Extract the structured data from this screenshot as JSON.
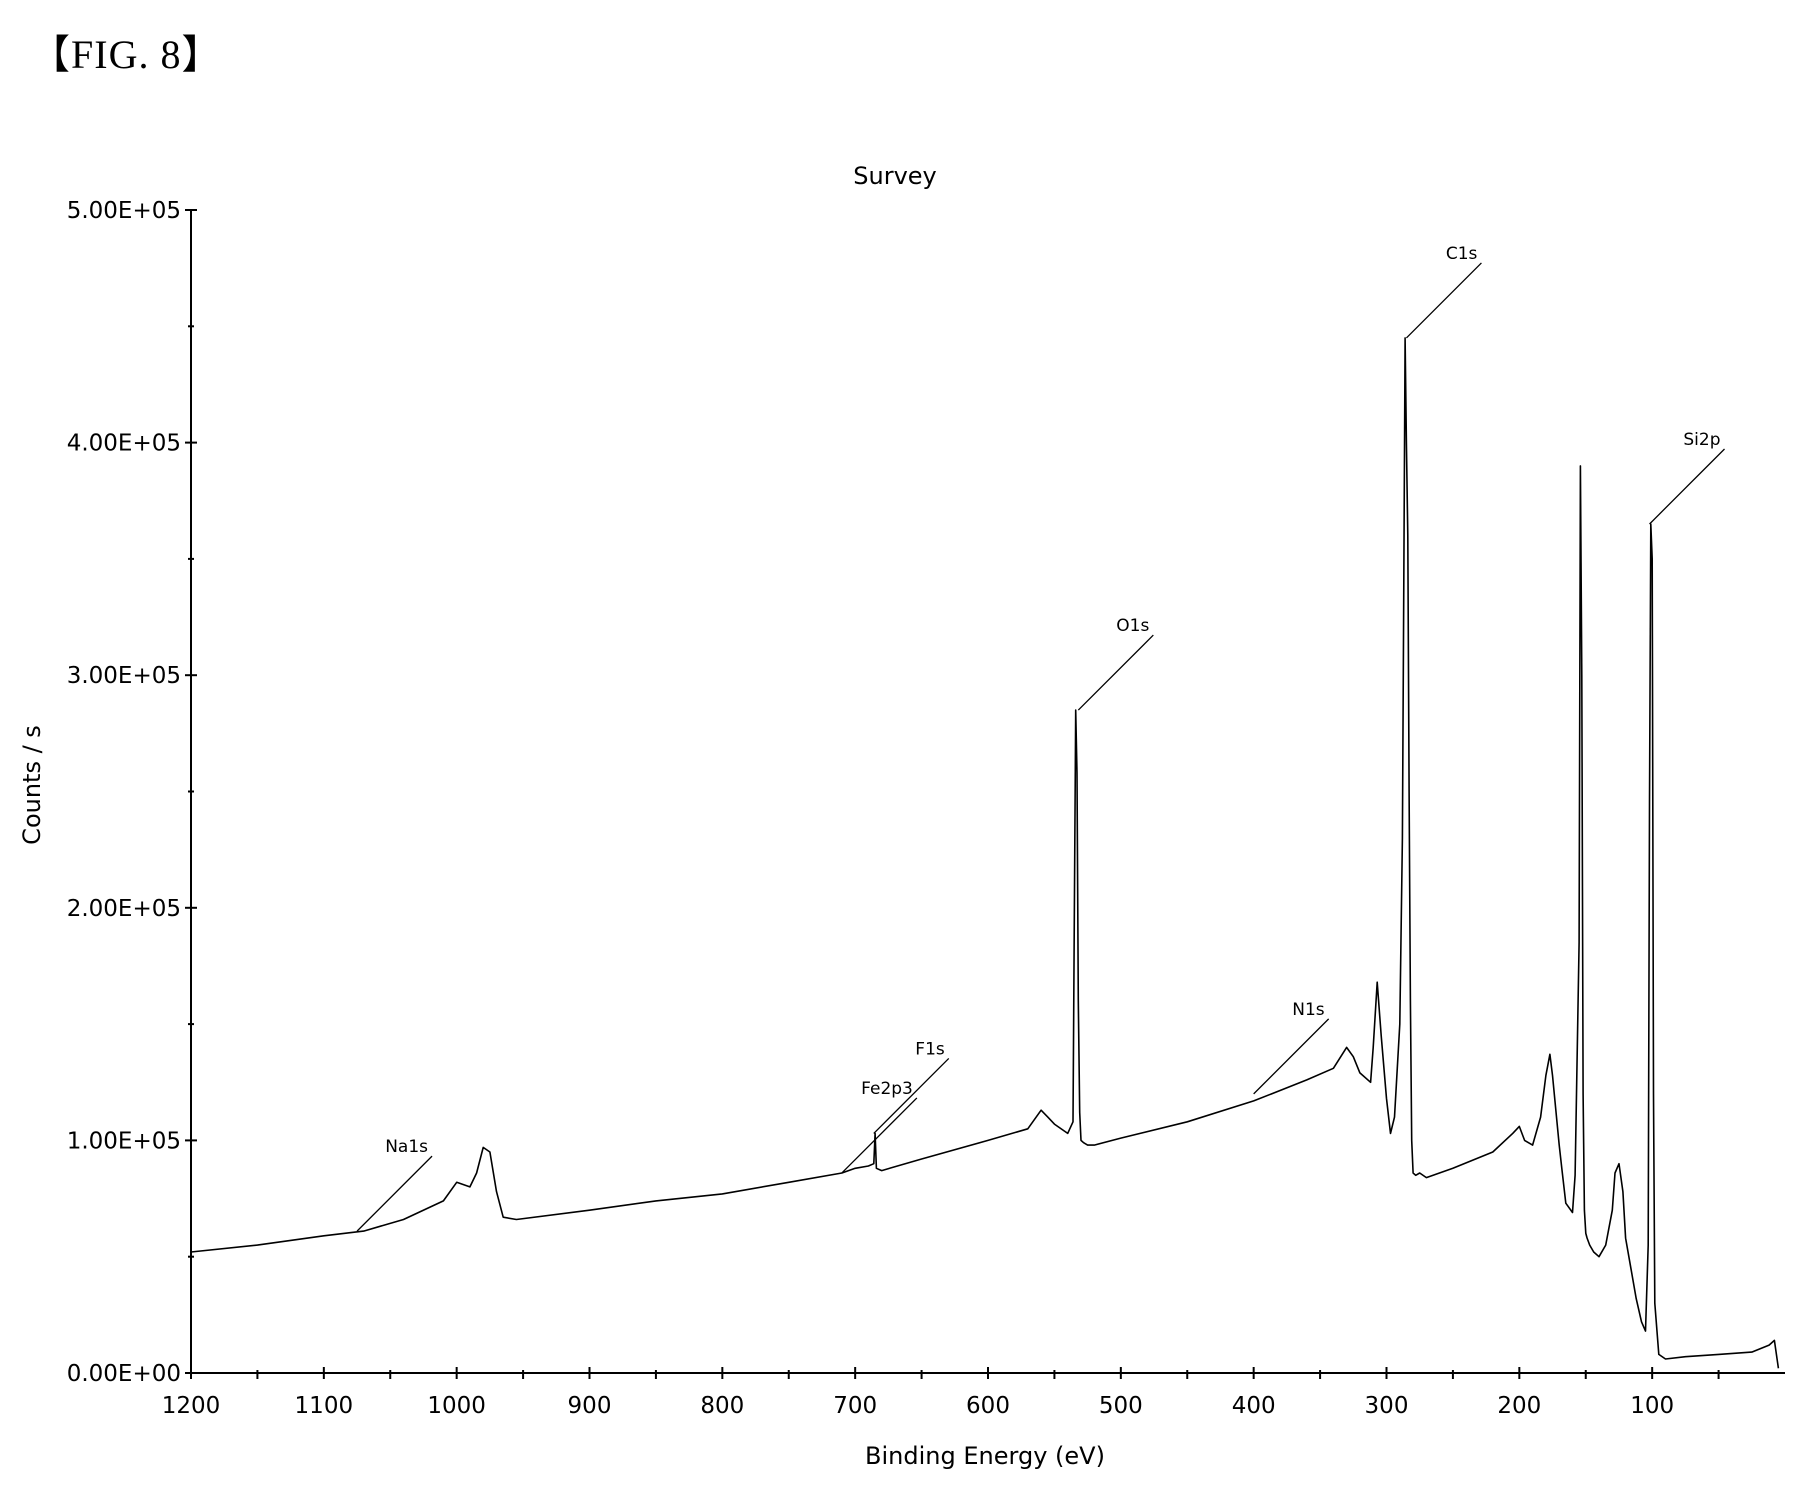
{
  "figure_label": "【FIG. 8】",
  "chart_data": {
    "type": "line",
    "title": "Survey",
    "xlabel": "Binding Energy (eV)",
    "ylabel": "Counts / s",
    "xlim": [
      1200,
      0
    ],
    "ylim": [
      0,
      500000
    ],
    "x_reversed": true,
    "grid": false,
    "x_ticks": [
      1200,
      1100,
      1000,
      900,
      800,
      700,
      600,
      500,
      400,
      300,
      200,
      100
    ],
    "x_tick_labels": [
      "1200",
      "1100",
      "1000",
      "900",
      "800",
      "700",
      "600",
      "500",
      "400",
      "300",
      "200",
      "100"
    ],
    "y_ticks": [
      0,
      100000,
      200000,
      300000,
      400000,
      500000
    ],
    "y_tick_labels": [
      "0.00E+00",
      "1.00E+05",
      "2.00E+05",
      "3.00E+05",
      "4.00E+05",
      "5.00E+05"
    ],
    "series": [
      {
        "x": [
          1200,
          1150,
          1100,
          1070,
          1040,
          1010,
          1000,
          990,
          985,
          980,
          975,
          970,
          965,
          955,
          900,
          850,
          800,
          750,
          710,
          700,
          690,
          686,
          685,
          684,
          680,
          650,
          600,
          570,
          560,
          555,
          550,
          540,
          536,
          535,
          534,
          533,
          532,
          531,
          530,
          528,
          525,
          520,
          500,
          450,
          400,
          360,
          340,
          330,
          325,
          320,
          312,
          310,
          307,
          304,
          300,
          297,
          294,
          290,
          288,
          287,
          286,
          285,
          284,
          283,
          282,
          281,
          280,
          278,
          275,
          270,
          250,
          220,
          205,
          200,
          196,
          190,
          184,
          180,
          177,
          175,
          172,
          170,
          168,
          165,
          160,
          158,
          155,
          154,
          153,
          152,
          151,
          150,
          149,
          147,
          144,
          140,
          135,
          130,
          128,
          125,
          122,
          120,
          116,
          112,
          108,
          105,
          103,
          102,
          101,
          100,
          99,
          98,
          95,
          90,
          75,
          50,
          25,
          12,
          8,
          5
        ],
        "y": [
          52000,
          55000,
          59000,
          61000,
          66000,
          74000,
          82000,
          80000,
          86000,
          97000,
          95000,
          78000,
          67000,
          66000,
          70000,
          74000,
          77000,
          82000,
          86000,
          88000,
          89000,
          90000,
          103000,
          88000,
          87000,
          92000,
          100000,
          105000,
          113000,
          110000,
          107000,
          103000,
          108000,
          195000,
          285000,
          258000,
          160000,
          112000,
          100000,
          99000,
          98000,
          98000,
          101000,
          108000,
          117000,
          126000,
          131000,
          140000,
          136000,
          129000,
          125000,
          140000,
          168000,
          145000,
          118000,
          103000,
          110000,
          150000,
          230000,
          340000,
          445000,
          400000,
          360000,
          250000,
          160000,
          100000,
          86000,
          85000,
          86000,
          84000,
          88000,
          95000,
          103000,
          106000,
          100000,
          98000,
          110000,
          128000,
          137000,
          128000,
          110000,
          98000,
          88000,
          73000,
          69000,
          85000,
          185000,
          390000,
          300000,
          120000,
          70000,
          60000,
          58000,
          55000,
          52000,
          50000,
          55000,
          70000,
          86000,
          90000,
          78000,
          58000,
          45000,
          32000,
          22000,
          18000,
          55000,
          245000,
          365000,
          350000,
          120000,
          30000,
          8000,
          6000,
          7000,
          8000,
          9000,
          12000,
          14000,
          2000
        ]
      }
    ],
    "annotations": [
      {
        "label": "Na1s",
        "x": 1075,
        "y": 61000
      },
      {
        "label": "Fe2p3",
        "x": 710,
        "y": 86000
      },
      {
        "label": "F1s",
        "x": 686,
        "y": 103000
      },
      {
        "label": "O1s",
        "x": 532,
        "y": 285000
      },
      {
        "label": "N1s",
        "x": 400,
        "y": 120000
      },
      {
        "label": "C1s",
        "x": 285,
        "y": 445000
      },
      {
        "label": "Si2p",
        "x": 102,
        "y": 365000
      }
    ]
  }
}
